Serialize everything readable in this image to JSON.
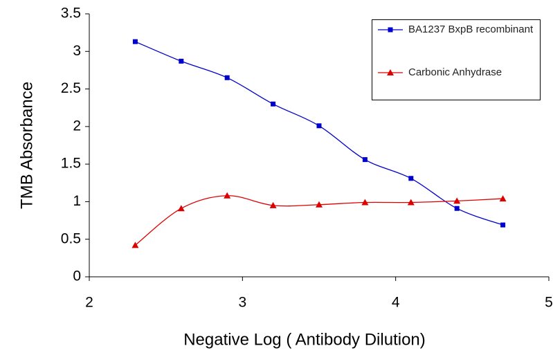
{
  "chart_data": {
    "type": "line",
    "x_label": "Negative Log ( Antibody Dilution)",
    "y_label": "TMB Absorbance",
    "x": [
      2.3,
      2.6,
      2.9,
      3.2,
      3.5,
      3.8,
      4.1,
      4.4,
      4.7
    ],
    "series": [
      {
        "name": "BA1237 BxpB recombinant",
        "color": "#0000cc",
        "marker": "square",
        "values": [
          3.13,
          2.87,
          2.65,
          2.3,
          2.01,
          1.56,
          1.31,
          0.91,
          0.69
        ]
      },
      {
        "name": "Carbonic Anhydrase",
        "color": "#dd0000",
        "marker": "triangle",
        "values": [
          0.42,
          0.91,
          1.08,
          0.95,
          0.96,
          0.99,
          0.99,
          1.01,
          1.04
        ]
      }
    ],
    "xlim": [
      2,
      5
    ],
    "xticks": [
      2,
      3,
      4,
      5
    ],
    "ylim": [
      0,
      3.5
    ],
    "yticks": [
      0,
      0.5,
      1,
      1.5,
      2,
      2.5,
      3,
      3.5
    ],
    "grid": false,
    "legend": "top-right"
  }
}
